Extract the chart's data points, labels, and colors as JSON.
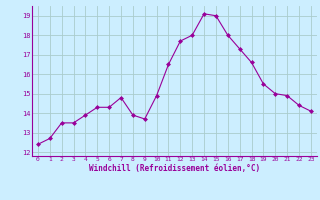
{
  "x": [
    0,
    1,
    2,
    3,
    4,
    5,
    6,
    7,
    8,
    9,
    10,
    11,
    12,
    13,
    14,
    15,
    16,
    17,
    18,
    19,
    20,
    21,
    22,
    23
  ],
  "y": [
    12.4,
    12.7,
    13.5,
    13.5,
    13.9,
    14.3,
    14.3,
    14.8,
    13.9,
    13.7,
    14.9,
    16.5,
    17.7,
    18.0,
    19.1,
    19.0,
    18.0,
    17.3,
    16.6,
    15.5,
    15.0,
    14.9,
    14.4,
    14.1
  ],
  "line_color": "#990099",
  "marker": "D",
  "marker_size": 2.0,
  "bg_color": "#cceeff",
  "grid_color": "#aacccc",
  "xlabel": "Windchill (Refroidissement éolien,°C)",
  "xlabel_color": "#990099",
  "tick_color": "#990099",
  "yticks": [
    12,
    13,
    14,
    15,
    16,
    17,
    18,
    19
  ],
  "xticks": [
    0,
    1,
    2,
    3,
    4,
    5,
    6,
    7,
    8,
    9,
    10,
    11,
    12,
    13,
    14,
    15,
    16,
    17,
    18,
    19,
    20,
    21,
    22,
    23
  ]
}
